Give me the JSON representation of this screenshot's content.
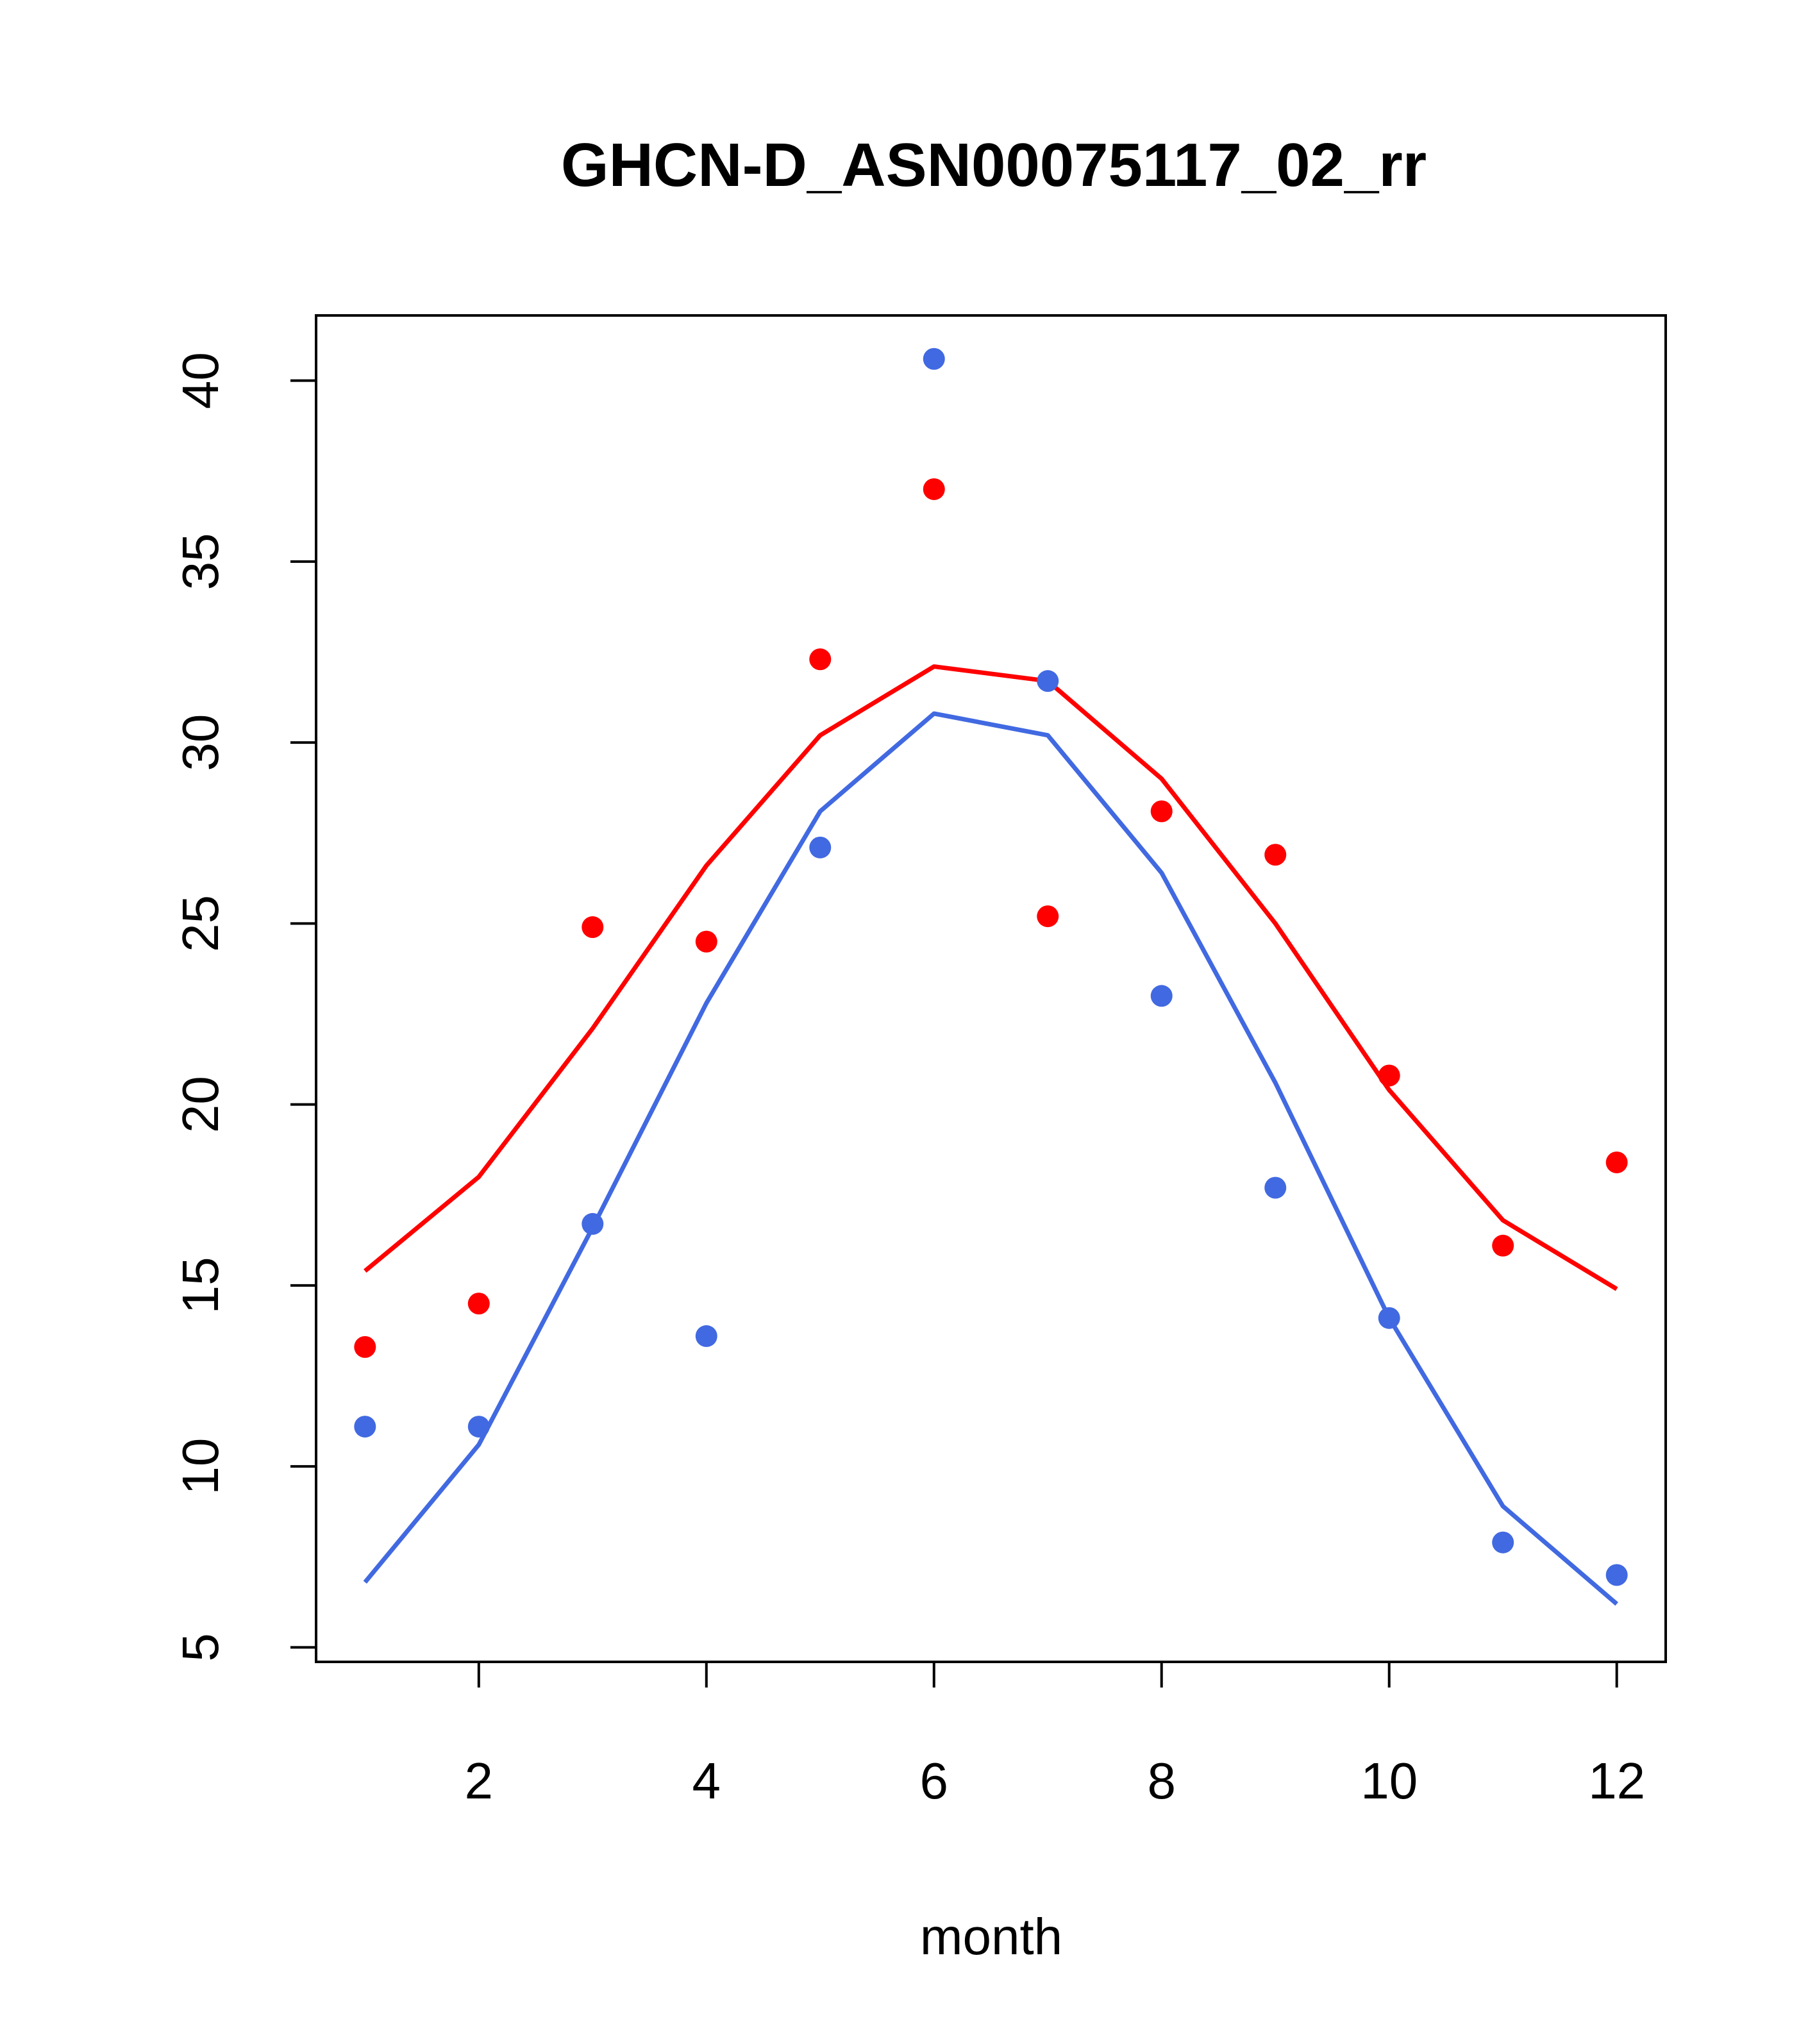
{
  "chart_data": {
    "type": "line",
    "title": "GHCN-D_ASN00075117_02_rr",
    "xlabel": "month",
    "ylabel": "",
    "xlim": [
      0.57,
      12.43
    ],
    "ylim": [
      4.6,
      41.8
    ],
    "x_ticks": [
      2,
      4,
      6,
      8,
      10,
      12
    ],
    "y_ticks": [
      5,
      10,
      15,
      20,
      25,
      30,
      35,
      40
    ],
    "grid": false,
    "legend": "none",
    "x": [
      1,
      2,
      3,
      4,
      5,
      6,
      7,
      8,
      9,
      10,
      11,
      12
    ],
    "series": [
      {
        "color": "#ff0000",
        "line": [
          15.4,
          18.0,
          22.1,
          26.6,
          30.2,
          32.1,
          31.7,
          29.0,
          25.0,
          20.4,
          16.8,
          14.9
        ],
        "points": [
          13.3,
          14.5,
          24.9,
          24.5,
          32.3,
          37.0,
          25.2,
          28.1,
          26.9,
          20.8,
          16.1,
          18.4
        ]
      },
      {
        "color": "#4169e1",
        "line": [
          6.8,
          10.6,
          16.6,
          22.8,
          28.1,
          30.8,
          30.2,
          26.4,
          20.6,
          14.1,
          8.9,
          6.2
        ],
        "points": [
          11.1,
          11.1,
          16.7,
          13.6,
          27.1,
          40.6,
          31.7,
          23.0,
          17.7,
          14.1,
          7.9,
          7.0
        ]
      }
    ]
  }
}
